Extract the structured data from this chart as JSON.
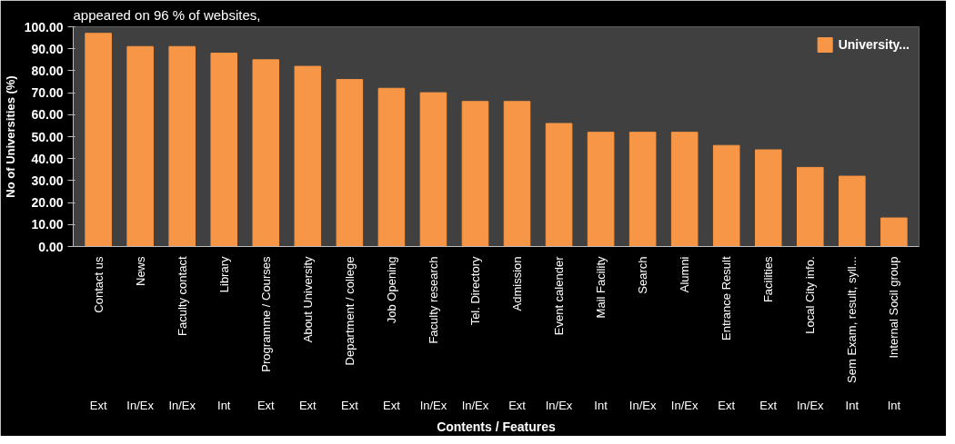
{
  "chart_data": {
    "type": "bar",
    "categories": [
      "Contact us",
      "News",
      "Faculty contact",
      "Library",
      "Programme / Courses",
      "About University",
      "Department / college",
      "Job Opening",
      "Faculty research",
      "Tel. Directory",
      "Admission",
      "Event calender",
      "Mail Facility",
      "Search",
      "Alumni",
      "Entrance Result",
      "Facilities",
      "Local City info.",
      "Sem Exam, result, syll...",
      "Internal Socil group"
    ],
    "series": [
      {
        "name": "University...",
        "color": "#f79646",
        "values": [
          97,
          91,
          91,
          88,
          85,
          82,
          76,
          72,
          70,
          66,
          66,
          56,
          52,
          52,
          52,
          46,
          44,
          36,
          32,
          13
        ]
      }
    ],
    "ylabel": "No of Universities (%)",
    "xlabel": "Contents / Features",
    "ylim": [
      0,
      100
    ],
    "yticks": [
      {
        "value": 0,
        "label": "0.00"
      },
      {
        "value": 10,
        "label": "10.00"
      },
      {
        "value": 20,
        "label": "20.00"
      },
      {
        "value": 30,
        "label": "30.00"
      },
      {
        "value": 40,
        "label": "40.00"
      },
      {
        "value": 50,
        "label": "50.00"
      },
      {
        "value": 60,
        "label": "60.00"
      },
      {
        "value": 70,
        "label": "70.00"
      },
      {
        "value": 80,
        "label": "80.00"
      },
      {
        "value": 90,
        "label": "90.00"
      },
      {
        "value": 100,
        "label": "100.00"
      }
    ],
    "annotations": [
      "appeared on 96 % of websites,",
      "Ext",
      "In/Ex",
      "In/Ex",
      "Int",
      "Ext",
      "Ext",
      "Ext",
      "Ext",
      "In/Ex",
      "In/Ex",
      "Ext",
      "In/Ex",
      "Int",
      "In/Ex",
      "In/Ex",
      "Ext",
      "Ext",
      "In/Ex",
      "Int",
      "Int"
    ],
    "legend": "top right",
    "grid": false
  }
}
